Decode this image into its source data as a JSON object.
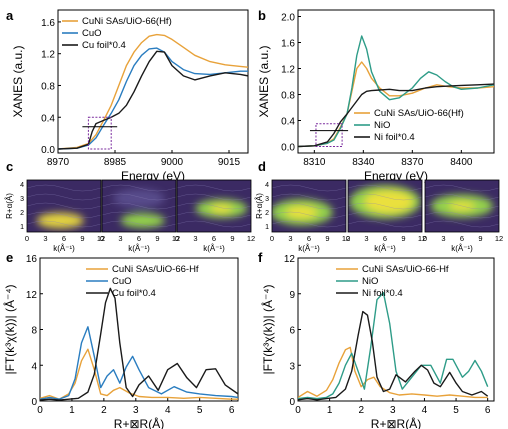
{
  "colors": {
    "orange": "#E8A23A",
    "blue": "#2A7DC0",
    "teal": "#2E9C88",
    "black": "#1A1A1A",
    "purple_box": "#7A2B9E",
    "wt_dark": "#3B2A63",
    "wt_mid": "#5A4E8E",
    "wt_green": "#9BE04A",
    "wt_yellow": "#F2E23C"
  },
  "panels": {
    "a": {
      "label": "a"
    },
    "b": {
      "label": "b"
    },
    "c": {
      "label": "c"
    },
    "d": {
      "label": "d"
    },
    "e": {
      "label": "e"
    },
    "f": {
      "label": "f"
    }
  },
  "chart_data": [
    {
      "id": "a",
      "type": "line",
      "xlabel": "Energy (eV)",
      "ylabel": "XANES (a.u.)",
      "xlim": [
        8970,
        9020
      ],
      "ylim": [
        -0.05,
        1.75
      ],
      "xticks": [
        "8970",
        "8985",
        "9000",
        "9015"
      ],
      "yticks": [
        "0.0",
        "0.4",
        "0.8",
        "1.2",
        "1.6"
      ],
      "legend": "top-left",
      "series": [
        {
          "name": "CuNi SAs/UiO-66(Hf)",
          "color_key": "orange",
          "x": [
            8970,
            8975,
            8978,
            8980,
            8982,
            8984,
            8986,
            8988,
            8990,
            8992,
            8994,
            8996,
            8998,
            9000,
            9003,
            9006,
            9010,
            9014,
            9018,
            9020
          ],
          "y": [
            0.0,
            0.02,
            0.07,
            0.18,
            0.36,
            0.55,
            0.8,
            1.05,
            1.22,
            1.34,
            1.42,
            1.44,
            1.43,
            1.38,
            1.28,
            1.18,
            1.1,
            1.06,
            1.04,
            1.03
          ]
        },
        {
          "name": "CuO",
          "color_key": "blue",
          "x": [
            8970,
            8975,
            8978,
            8980,
            8982,
            8984,
            8986,
            8988,
            8990,
            8992,
            8994,
            8996,
            8998,
            9000,
            9003,
            9006,
            9010,
            9014,
            9018,
            9020
          ],
          "y": [
            0.0,
            0.01,
            0.05,
            0.14,
            0.3,
            0.45,
            0.62,
            0.85,
            1.05,
            1.18,
            1.26,
            1.27,
            1.22,
            1.1,
            1.0,
            0.95,
            0.94,
            0.96,
            0.98,
            0.98
          ]
        },
        {
          "name": "Cu foil*0.4",
          "color_key": "black",
          "x": [
            8970,
            8975,
            8978,
            8979,
            8980,
            8982,
            8984,
            8986,
            8988,
            8990,
            8992,
            8994,
            8996,
            8998,
            9000,
            9003,
            9006,
            9010,
            9014,
            9018,
            9020
          ],
          "y": [
            0.0,
            0.01,
            0.06,
            0.22,
            0.32,
            0.36,
            0.4,
            0.45,
            0.55,
            0.72,
            0.92,
            1.1,
            1.23,
            1.22,
            1.05,
            0.92,
            0.87,
            0.92,
            0.96,
            0.94,
            0.92
          ]
        }
      ],
      "box": {
        "x": [
          8978,
          8984
        ],
        "y": [
          0.0,
          0.4
        ]
      }
    },
    {
      "id": "b",
      "type": "line",
      "xlabel": "Energy (eV)",
      "ylabel": "XANES (a.u.)",
      "xlim": [
        8300,
        8420
      ],
      "ylim": [
        -0.1,
        2.1
      ],
      "xticks": [
        "8310",
        "8340",
        "8370",
        "8400"
      ],
      "yticks": [
        "0.0",
        "0.4",
        "0.8",
        "1.2",
        "1.6",
        "2.0"
      ],
      "legend": "bottom-right",
      "series": [
        {
          "name": "CuNi SAs/UiO-66(Hf)",
          "color_key": "orange",
          "x": [
            8300,
            8310,
            8318,
            8322,
            8326,
            8330,
            8333,
            8336,
            8339,
            8342,
            8345,
            8350,
            8356,
            8362,
            8370,
            8378,
            8385,
            8392,
            8400,
            8410,
            8420
          ],
          "y": [
            0.0,
            0.01,
            0.05,
            0.12,
            0.3,
            0.5,
            0.85,
            1.2,
            1.3,
            1.2,
            1.05,
            0.9,
            0.78,
            0.78,
            0.82,
            0.9,
            0.95,
            0.92,
            0.9,
            0.9,
            0.92
          ]
        },
        {
          "name": "NiO",
          "color_key": "teal",
          "x": [
            8300,
            8310,
            8318,
            8322,
            8326,
            8330,
            8333,
            8336,
            8339,
            8342,
            8345,
            8350,
            8356,
            8362,
            8370,
            8375,
            8380,
            8385,
            8390,
            8395,
            8400,
            8410,
            8420
          ],
          "y": [
            0.0,
            0.01,
            0.05,
            0.1,
            0.28,
            0.5,
            0.9,
            1.4,
            1.7,
            1.5,
            1.15,
            0.85,
            0.72,
            0.75,
            0.9,
            1.05,
            1.15,
            1.1,
            1.0,
            0.92,
            0.88,
            0.9,
            0.95
          ]
        },
        {
          "name": "Ni foil*0.4",
          "color_key": "black",
          "x": [
            8300,
            8310,
            8318,
            8322,
            8326,
            8330,
            8333,
            8336,
            8339,
            8342,
            8345,
            8350,
            8356,
            8362,
            8370,
            8378,
            8385,
            8392,
            8400,
            8410,
            8420
          ],
          "y": [
            0.0,
            0.01,
            0.07,
            0.2,
            0.38,
            0.5,
            0.6,
            0.7,
            0.8,
            0.85,
            0.86,
            0.87,
            0.88,
            0.86,
            0.86,
            0.9,
            0.92,
            0.93,
            0.94,
            0.95,
            0.96
          ]
        }
      ],
      "box": {
        "x": [
          8311,
          8327
        ],
        "y": [
          0.0,
          0.35
        ]
      }
    },
    {
      "id": "c",
      "type": "heatmap",
      "xlabel": "k(Å⁻¹)",
      "ylabel": "R+α(Å)",
      "xticks": [
        "0",
        "3",
        "6",
        "9",
        "12"
      ],
      "yticks": [
        "1",
        "2",
        "3",
        "4"
      ],
      "maps": [
        {
          "blobs": [
            {
              "cx": 0.45,
              "cy": 0.78,
              "rx": 0.32,
              "ry": 0.15,
              "level": "yellow"
            }
          ]
        },
        {
          "blobs": [
            {
              "cx": 0.55,
              "cy": 0.78,
              "rx": 0.3,
              "ry": 0.14,
              "level": "green"
            },
            {
              "cx": 0.5,
              "cy": 0.35,
              "rx": 0.35,
              "ry": 0.18,
              "level": "mid"
            }
          ]
        },
        {
          "blobs": [
            {
              "cx": 0.6,
              "cy": 0.55,
              "rx": 0.35,
              "ry": 0.18,
              "level": "green"
            },
            {
              "cx": 0.6,
              "cy": 0.55,
              "rx": 0.15,
              "ry": 0.08,
              "level": "yellow"
            }
          ]
        }
      ]
    },
    {
      "id": "d",
      "type": "heatmap",
      "xlabel": "k(Å⁻¹)",
      "ylabel": "R+α(Å)",
      "xticks": [
        "0",
        "3",
        "6",
        "9",
        "12"
      ],
      "yticks": [
        "1",
        "2",
        "3",
        "4"
      ],
      "maps": [
        {
          "blobs": [
            {
              "cx": 0.4,
              "cy": 0.62,
              "rx": 0.42,
              "ry": 0.25,
              "level": "green"
            },
            {
              "cx": 0.4,
              "cy": 0.62,
              "rx": 0.22,
              "ry": 0.12,
              "level": "yellow"
            }
          ]
        },
        {
          "blobs": [
            {
              "cx": 0.5,
              "cy": 0.42,
              "rx": 0.48,
              "ry": 0.32,
              "level": "green"
            },
            {
              "cx": 0.55,
              "cy": 0.42,
              "rx": 0.33,
              "ry": 0.22,
              "level": "yellow"
            }
          ]
        },
        {
          "blobs": [
            {
              "cx": 0.5,
              "cy": 0.5,
              "rx": 0.42,
              "ry": 0.22,
              "level": "green"
            },
            {
              "cx": 0.5,
              "cy": 0.5,
              "rx": 0.18,
              "ry": 0.08,
              "level": "yellow"
            }
          ]
        }
      ]
    },
    {
      "id": "e",
      "type": "line",
      "xlabel": "R+⊠R(Å)",
      "ylabel": "|FT(k³χ(k))| (Å⁻⁴)",
      "xlim": [
        0,
        6.2
      ],
      "ylim": [
        0,
        16
      ],
      "xticks": [
        "0",
        "1",
        "2",
        "3",
        "4",
        "5",
        "6"
      ],
      "yticks": [
        "0",
        "4",
        "8",
        "12",
        "16"
      ],
      "legend": "top-right",
      "series": [
        {
          "name": "CuNi SAs/UiO-66-Hf",
          "color_key": "orange",
          "x": [
            0,
            0.3,
            0.6,
            0.9,
            1.1,
            1.3,
            1.5,
            1.7,
            1.9,
            2.1,
            2.3,
            2.5,
            2.8,
            3.1,
            3.5,
            4.0,
            4.5,
            5.0,
            5.5,
            6.0,
            6.2
          ],
          "y": [
            0.3,
            0.6,
            0.2,
            0.8,
            2.0,
            4.5,
            5.8,
            3.5,
            0.8,
            0.6,
            1.2,
            1.5,
            0.9,
            0.5,
            0.4,
            0.4,
            0.3,
            0.4,
            0.3,
            0.2,
            0.2
          ]
        },
        {
          "name": "CuO",
          "color_key": "blue",
          "x": [
            0,
            0.3,
            0.6,
            0.9,
            1.1,
            1.3,
            1.5,
            1.7,
            1.9,
            2.1,
            2.3,
            2.5,
            2.7,
            2.9,
            3.1,
            3.4,
            3.8,
            4.2,
            4.6,
            5.0,
            5.5,
            6.0,
            6.2
          ],
          "y": [
            0.2,
            0.4,
            0.2,
            0.6,
            2.5,
            6.5,
            8.3,
            5.0,
            1.5,
            2.8,
            3.5,
            2.0,
            3.8,
            5.0,
            3.5,
            1.5,
            0.8,
            1.6,
            1.0,
            0.8,
            0.6,
            0.5,
            0.4
          ]
        },
        {
          "name": "Cu foil*0.4",
          "color_key": "black",
          "x": [
            0,
            0.3,
            0.6,
            0.9,
            1.2,
            1.5,
            1.7,
            1.9,
            2.05,
            2.2,
            2.35,
            2.5,
            2.7,
            2.9,
            3.1,
            3.4,
            3.7,
            4.0,
            4.3,
            4.6,
            4.9,
            5.2,
            5.5,
            5.8,
            6.2
          ],
          "y": [
            0.1,
            0.2,
            0.1,
            0.2,
            0.3,
            1.0,
            3.0,
            7.5,
            11.0,
            12.6,
            11.5,
            6.5,
            1.5,
            0.5,
            1.8,
            2.8,
            1.2,
            3.5,
            4.2,
            2.6,
            1.5,
            3.5,
            3.6,
            1.8,
            0.8
          ]
        }
      ]
    },
    {
      "id": "f",
      "type": "line",
      "xlabel": "R+⊠R(Å)",
      "ylabel": "|FT(k³χ(k))| (Å⁻⁴)",
      "xlim": [
        0,
        6.2
      ],
      "ylim": [
        0,
        12
      ],
      "xticks": [
        "0",
        "1",
        "2",
        "3",
        "4",
        "5",
        "6"
      ],
      "yticks": [
        "0",
        "3",
        "6",
        "9",
        "12"
      ],
      "legend": "top-right",
      "series": [
        {
          "name": "CuNi SAs/UiO-66-Hf",
          "color_key": "orange",
          "x": [
            0,
            0.3,
            0.6,
            0.9,
            1.1,
            1.3,
            1.5,
            1.65,
            1.8,
            2.0,
            2.2,
            2.4,
            2.6,
            2.9,
            3.2,
            3.6,
            4.0,
            4.4,
            4.8,
            5.2,
            5.6,
            6.0
          ],
          "y": [
            0.3,
            0.8,
            0.4,
            0.9,
            1.8,
            3.2,
            4.3,
            4.5,
            2.5,
            1.2,
            1.8,
            2.0,
            1.2,
            0.7,
            0.5,
            0.6,
            0.5,
            0.4,
            0.5,
            0.4,
            0.3,
            0.3
          ]
        },
        {
          "name": "NiO",
          "color_key": "teal",
          "x": [
            0,
            0.3,
            0.6,
            0.9,
            1.1,
            1.3,
            1.5,
            1.7,
            1.9,
            2.1,
            2.3,
            2.5,
            2.7,
            2.9,
            3.1,
            3.3,
            3.6,
            3.9,
            4.2,
            4.5,
            4.7,
            4.9,
            5.2,
            5.4,
            5.6,
            5.8,
            6.0
          ],
          "y": [
            0.2,
            0.3,
            0.2,
            0.3,
            0.6,
            1.5,
            3.0,
            4.0,
            2.5,
            1.0,
            4.5,
            8.5,
            9.1,
            6.5,
            2.5,
            1.0,
            2.0,
            3.0,
            3.0,
            1.5,
            3.5,
            3.5,
            2.0,
            2.5,
            3.4,
            2.5,
            1.2
          ]
        },
        {
          "name": "Ni foil*0.4",
          "color_key": "black",
          "x": [
            0,
            0.3,
            0.6,
            0.9,
            1.2,
            1.5,
            1.7,
            1.9,
            2.05,
            2.2,
            2.35,
            2.5,
            2.7,
            2.9,
            3.1,
            3.4,
            3.7,
            3.9,
            4.1,
            4.3,
            4.5,
            4.8,
            5.0,
            5.2,
            5.5,
            5.8,
            6.0
          ],
          "y": [
            0.1,
            0.2,
            0.1,
            0.2,
            0.3,
            1.0,
            2.5,
            5.5,
            7.5,
            7.2,
            5.0,
            2.0,
            0.8,
            1.0,
            2.2,
            1.6,
            2.5,
            3.0,
            2.6,
            1.5,
            1.2,
            2.4,
            1.5,
            0.8,
            0.5,
            0.8,
            0.4
          ]
        }
      ]
    }
  ]
}
